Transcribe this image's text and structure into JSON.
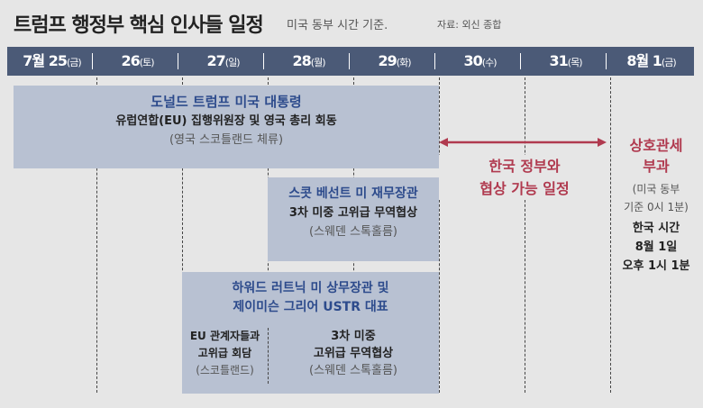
{
  "title": "트럼프 행정부 핵심 인사들 일정",
  "subtitle": "미국 동부 시간 기준.",
  "source": "자료: 외신 종합",
  "days": [
    {
      "date": "7월 25",
      "dow": "(금)"
    },
    {
      "date": "26",
      "dow": "(토)"
    },
    {
      "date": "27",
      "dow": "(일)"
    },
    {
      "date": "28",
      "dow": "(월)"
    },
    {
      "date": "29",
      "dow": "(화)"
    },
    {
      "date": "30",
      "dow": "(수)"
    },
    {
      "date": "31",
      "dow": "(목)"
    },
    {
      "date": "8월 1",
      "dow": "(금)"
    }
  ],
  "events": {
    "trump": {
      "who": "도널드 트럼프 미국 대통령",
      "what": "유럽연합(EU) 집행위원장 및 영국 총리 회동",
      "where": "(영국 스코틀랜드 체류)"
    },
    "bessent": {
      "who": "스콧 베선트 미 재무장관",
      "what": "3차 미중 고위급 무역협상",
      "where": "(스웨덴 스톡홀름)"
    },
    "lutnick": {
      "who1": "하워드 러트닉 미 상무장관 및",
      "who2": "제이미슨 그리어 USTR 대표",
      "left": [
        "EU 관계자들과",
        "고위급 회담",
        "(스코틀랜드)"
      ],
      "right": [
        "3차 미중",
        "고위급 무역협상",
        "(스웨덴 스톡홀름)"
      ]
    }
  },
  "negotiation": [
    "한국 정부와",
    "협상 가능 일정"
  ],
  "tariff": {
    "title": [
      "상호관세",
      "부과"
    ],
    "us_time": [
      "(미국 동부",
      "기준 0시 1분)"
    ],
    "kr_time": [
      "한국 시간",
      "8월 1일",
      "오후 1시 1분"
    ]
  },
  "colors": {
    "header": "#4b5a77",
    "box": "#b8c1d2",
    "accent": "#b03a4f",
    "name": "#2d4b8c"
  }
}
